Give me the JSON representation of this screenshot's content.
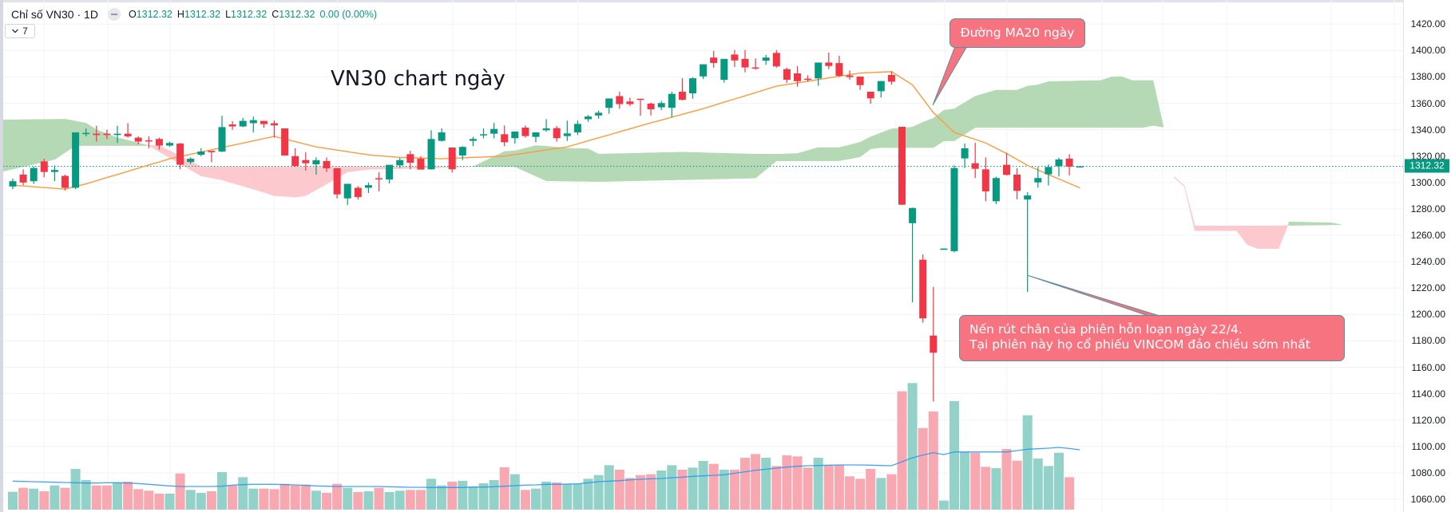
{
  "legend": {
    "symbol": "Chỉ số VN30 · 1D",
    "open_label": "O",
    "open": "1312.32",
    "high_label": "H",
    "high": "1312.32",
    "low_label": "L",
    "low": "1312.32",
    "close_label": "C",
    "close": "1312.32",
    "change": "0.00 (0.00%)",
    "indicator_count": "7"
  },
  "annotations": {
    "title_text": "VN30 chart ngày",
    "ma_callout": "Đường MA20 ngày",
    "candle_callout_line1": "Nến rút chân của phiên hỗn loạn ngày 22/4.",
    "candle_callout_line2": "Tại phiên này họ cổ phiếu VINCOM đảo chiều sớm nhất"
  },
  "price_axis": {
    "ticks": [
      "1420.00",
      "1400.00",
      "1380.00",
      "1360.00",
      "1340.00",
      "1320.00",
      "1300.00",
      "1280.00",
      "1260.00",
      "1240.00",
      "1220.00",
      "1200.00",
      "1180.00",
      "1160.00",
      "1140.00",
      "1120.00",
      "1100.00",
      "1080.00",
      "1060.00"
    ],
    "last_price": "1312.32"
  },
  "colors": {
    "up": "#089981",
    "down": "#f23645",
    "volume_up": "#92d2c8",
    "volume_down": "#f8a8b0",
    "cloud_up": "#b5d9b5",
    "cloud_down": "#fcc9cf",
    "ma20": "#ff9a3c",
    "volume_ma": "#2196f3",
    "callout": "#f7737f"
  },
  "chart_data": {
    "type": "candlestick",
    "title": "",
    "ylim": [
      1060,
      1420
    ],
    "grid": true,
    "last_price": 1312.32,
    "candles_ohlc": [
      [
        1297,
        1303,
        1295,
        1301
      ],
      [
        1306,
        1310,
        1298,
        1300
      ],
      [
        1301,
        1312,
        1299,
        1311
      ],
      [
        1316,
        1318,
        1304,
        1308
      ],
      [
        1308,
        1313,
        1301,
        1309.5
      ],
      [
        1305,
        1306,
        1294,
        1296
      ],
      [
        1296,
        1338,
        1295,
        1338
      ],
      [
        1337,
        1341,
        1335,
        1337.6
      ],
      [
        1337,
        1343,
        1331,
        1336
      ],
      [
        1337,
        1340,
        1333,
        1336
      ],
      [
        1336,
        1343,
        1330,
        1337
      ],
      [
        1337,
        1345,
        1334,
        1335
      ],
      [
        1334,
        1335,
        1329,
        1331
      ],
      [
        1332,
        1335,
        1326,
        1331.5
      ],
      [
        1333,
        1334,
        1325,
        1328
      ],
      [
        1328,
        1331,
        1327,
        1330
      ],
      [
        1329.5,
        1330,
        1310,
        1313.5
      ],
      [
        1315.5,
        1319,
        1314,
        1318
      ],
      [
        1321,
        1326,
        1320,
        1323.5
      ],
      [
        1324,
        1324,
        1315.5,
        1323
      ],
      [
        1323.5,
        1350.6,
        1323,
        1342
      ],
      [
        1344,
        1346.5,
        1340,
        1342.5
      ],
      [
        1342.5,
        1349,
        1342,
        1346.7
      ],
      [
        1345,
        1350,
        1338,
        1347.3
      ],
      [
        1346.7,
        1346.7,
        1341.5,
        1344.3
      ],
      [
        1344.9,
        1347,
        1334,
        1343.3
      ],
      [
        1341,
        1341,
        1320.5,
        1320.5
      ],
      [
        1320,
        1326,
        1312,
        1312.5
      ],
      [
        1317,
        1323,
        1309,
        1314.6
      ],
      [
        1313.8,
        1319,
        1306,
        1316.9
      ],
      [
        1316.3,
        1319,
        1308,
        1310.8
      ],
      [
        1310.8,
        1311,
        1288,
        1291
      ],
      [
        1288,
        1299,
        1283,
        1299
      ],
      [
        1296,
        1297.3,
        1287,
        1289
      ],
      [
        1296,
        1300,
        1292,
        1298
      ],
      [
        1303.3,
        1307.8,
        1293.3,
        1303
      ],
      [
        1302.3,
        1313.4,
        1299.3,
        1313.4
      ],
      [
        1313,
        1318.7,
        1311,
        1317
      ],
      [
        1321.5,
        1324,
        1310,
        1315
      ],
      [
        1318,
        1319.8,
        1310,
        1309.8
      ],
      [
        1310,
        1339.6,
        1309.8,
        1333
      ],
      [
        1331.6,
        1341,
        1331,
        1338
      ],
      [
        1326.5,
        1326.5,
        1307.5,
        1310
      ],
      [
        1320.5,
        1327.5,
        1317,
        1327
      ],
      [
        1331.6,
        1334.6,
        1327.5,
        1333
      ],
      [
        1336.5,
        1341,
        1333.5,
        1336.6
      ],
      [
        1337,
        1345.2,
        1333.5,
        1340.6
      ],
      [
        1336.6,
        1343.2,
        1327.5,
        1330.5
      ],
      [
        1333.6,
        1338.6,
        1329.5,
        1338.6
      ],
      [
        1341.6,
        1343.2,
        1334,
        1335.2
      ],
      [
        1334.6,
        1338,
        1330.5,
        1338
      ],
      [
        1339.6,
        1348,
        1338.5,
        1341
      ],
      [
        1341.2,
        1342.8,
        1331,
        1333.6
      ],
      [
        1335.2,
        1346.9,
        1331.5,
        1337.2
      ],
      [
        1338,
        1346.9,
        1336,
        1344.4
      ],
      [
        1348,
        1351.3,
        1346,
        1350
      ],
      [
        1350.8,
        1354.5,
        1348.4,
        1352.9
      ],
      [
        1356.6,
        1363.7,
        1352.1,
        1363.7
      ],
      [
        1365.5,
        1368.8,
        1355.9,
        1359.4
      ],
      [
        1361.4,
        1364.3,
        1358,
        1359.4
      ],
      [
        1363.5,
        1363.5,
        1350.6,
        1363.4
      ],
      [
        1359.8,
        1360.6,
        1350.8,
        1355.5
      ],
      [
        1357,
        1361.8,
        1354.9,
        1360.2
      ],
      [
        1356.6,
        1368.8,
        1349.4,
        1367.2
      ],
      [
        1368.8,
        1379,
        1362.3,
        1362.7
      ],
      [
        1367.6,
        1379.8,
        1363.5,
        1379
      ],
      [
        1380.4,
        1389.6,
        1378.4,
        1389.6
      ],
      [
        1394.7,
        1399.8,
        1387,
        1390.6
      ],
      [
        1377.8,
        1393.7,
        1375.7,
        1393.7
      ],
      [
        1397,
        1400.4,
        1387.6,
        1392.5
      ],
      [
        1393.7,
        1400.4,
        1383.5,
        1387.2
      ],
      [
        1387.2,
        1394.1,
        1385.5,
        1386.8
      ],
      [
        1392.3,
        1396.7,
        1389.2,
        1394.7
      ],
      [
        1398.2,
        1400.4,
        1387,
        1388
      ],
      [
        1385.9,
        1387,
        1375.6,
        1377.9
      ],
      [
        1382.7,
        1388.2,
        1372.6,
        1376.8
      ],
      [
        1378.7,
        1381.3,
        1376.2,
        1378.2
      ],
      [
        1378.9,
        1390.9,
        1373.3,
        1390.9
      ],
      [
        1390.9,
        1398.4,
        1385.9,
        1388.3
      ],
      [
        1390.5,
        1396,
        1380,
        1380.9
      ],
      [
        1381.1,
        1384.9,
        1377.9,
        1379.9
      ],
      [
        1380.3,
        1380.3,
        1370.2,
        1373.8
      ],
      [
        1368.8,
        1368.8,
        1359.7,
        1363.8
      ],
      [
        1369.2,
        1376.9,
        1364.4,
        1376.9
      ],
      [
        1381.5,
        1384.3,
        1374.2,
        1376.4
      ],
      [
        1342.2,
        1342.2,
        1283,
        1283.2
      ],
      [
        1269.2,
        1281,
        1209.3,
        1280.7
      ],
      [
        1241.5,
        1245.5,
        1193.8,
        1197.1
      ],
      [
        1184,
        1221,
        1134,
        1171
      ],
      [
        1249,
        1250,
        1249,
        1250
      ],
      [
        1248,
        1313,
        1247,
        1311
      ],
      [
        1318.3,
        1329.6,
        1311,
        1325.9
      ],
      [
        1314.6,
        1330,
        1303.4,
        1310.4
      ],
      [
        1310,
        1319,
        1285.8,
        1293.3
      ],
      [
        1285.8,
        1304.4,
        1283.6,
        1303.4
      ],
      [
        1313.4,
        1322.5,
        1305.4,
        1305.8
      ],
      [
        1306,
        1310.8,
        1287.3,
        1293.7
      ],
      [
        1287.1,
        1292.7,
        1217,
        1290.2
      ],
      [
        1300.1,
        1311.8,
        1296.1,
        1303.4
      ],
      [
        1306.2,
        1313.8,
        1297.7,
        1311.8
      ],
      [
        1312.4,
        1318.7,
        1304.6,
        1317.5
      ],
      [
        1318.1,
        1321.5,
        1305.4,
        1312
      ],
      [
        1312.32,
        1312.32,
        1312.32,
        1312.32
      ]
    ],
    "ma20": [
      1298,
      1297.4,
      1296.8,
      1296.2,
      1295.6,
      1295,
      1297,
      1299,
      1301.4,
      1303.8,
      1306.1,
      1308.5,
      1310.9,
      1313.3,
      1315.6,
      1318,
      1319.7,
      1321.4,
      1323.1,
      1324.8,
      1326.5,
      1328.2,
      1329.9,
      1331.6,
      1333.3,
      1335,
      1333,
      1331,
      1329,
      1327,
      1325.8,
      1324.6,
      1323.4,
      1322.2,
      1321,
      1320.3,
      1319.7,
      1319,
      1318.8,
      1318.5,
      1318.3,
      1318,
      1318.3,
      1318.7,
      1319,
      1319.3,
      1319.7,
      1320,
      1321.2,
      1322.3,
      1323.5,
      1324.7,
      1325.8,
      1327,
      1329.3,
      1331.6,
      1333.9,
      1336.1,
      1338.4,
      1340.7,
      1343,
      1345.2,
      1347.3,
      1349.5,
      1351.7,
      1353.8,
      1356,
      1358.4,
      1360.9,
      1363.3,
      1365.7,
      1368.1,
      1370.6,
      1373,
      1374.3,
      1375.5,
      1376.8,
      1378,
      1379.3,
      1380.5,
      1381.8,
      1383,
      1383.3,
      1383.7,
      1384,
      1379,
      1374,
      1363.5,
      1353,
      1345.5,
      1338,
      1335.3,
      1332.7,
      1330,
      1326,
      1322,
      1317.5,
      1313,
      1309.5,
      1306,
      1302.7,
      1299.3,
      1296
    ],
    "volume_relative": [
      67,
      82,
      79,
      69,
      91,
      82,
      153,
      111,
      91,
      91,
      102,
      105,
      77,
      71,
      60,
      60,
      136,
      74,
      63,
      69,
      141,
      91,
      122,
      79,
      79,
      77,
      97,
      91,
      94,
      71,
      63,
      97,
      82,
      66,
      69,
      82,
      66,
      71,
      74,
      74,
      116,
      91,
      105,
      108,
      88,
      99,
      111,
      159,
      133,
      74,
      79,
      105,
      102,
      97,
      97,
      116,
      130,
      167,
      150,
      119,
      130,
      133,
      147,
      167,
      150,
      158,
      183,
      172,
      150,
      150,
      195,
      209,
      195,
      164,
      204,
      200,
      158,
      195,
      167,
      167,
      125,
      116,
      153,
      119,
      133,
      445,
      476,
      307,
      369,
      34,
      408,
      217,
      214,
      161,
      156,
      228,
      184,
      355,
      192,
      164,
      214,
      122,
      0
    ],
    "volume_ma_relative": [
      107,
      106,
      105,
      104,
      103,
      102,
      101,
      100,
      100,
      101,
      101,
      100,
      98,
      95,
      92,
      89,
      87,
      87,
      87,
      87,
      88,
      92,
      94,
      95,
      95,
      95,
      94,
      93,
      91,
      89,
      88,
      87,
      87,
      87,
      87,
      87,
      86,
      85,
      84,
      84,
      83,
      83,
      83,
      83,
      84,
      85,
      86,
      88,
      90,
      92,
      93,
      95,
      95,
      96,
      97,
      101,
      105,
      107,
      109,
      112,
      114,
      116,
      117,
      120,
      122,
      125,
      127,
      129,
      131,
      137,
      142,
      148,
      152,
      156,
      160,
      163,
      165,
      166,
      167,
      168,
      168,
      168,
      167,
      166,
      165,
      180,
      195,
      205,
      214,
      207,
      217,
      217,
      217,
      217,
      217,
      217,
      222,
      227,
      229,
      231,
      234,
      230,
      225
    ],
    "ichimoku_cloud": [
      {
        "span_a": [
          [
            0,
            1347.5
          ],
          [
            4,
            1347.8
          ],
          [
            6,
            1348
          ],
          [
            8,
            1345
          ],
          [
            9,
            1340
          ],
          [
            11,
            1334
          ],
          [
            12,
            1332
          ],
          [
            14,
            1328
          ],
          [
            19,
            1305
          ],
          [
            21,
            1302
          ],
          [
            24,
            1295
          ],
          [
            26,
            1290
          ],
          [
            28,
            1289
          ],
          [
            29,
            1290
          ],
          [
            31,
            1299
          ],
          [
            33,
            1308
          ],
          [
            35,
            1310
          ],
          [
            41,
            1311
          ],
          [
            45,
            1312
          ],
          [
            48,
            1323.5
          ],
          [
            49,
            1324
          ],
          [
            51,
            1328
          ],
          [
            52,
            1327.5
          ],
          [
            54,
            1326
          ],
          [
            56,
            1325.5
          ],
          [
            57,
            1321.5
          ],
          [
            65,
            1323
          ],
          [
            72,
            1321.5
          ],
          [
            74,
            1321.5
          ],
          [
            76,
            1322
          ],
          [
            78,
            1326.5
          ],
          [
            80,
            1326.5
          ],
          [
            82,
            1330.5
          ],
          [
            83,
            1334.6
          ],
          [
            85,
            1340.6
          ],
          [
            87,
            1342
          ],
          [
            88,
            1345.7
          ],
          [
            89,
            1348.7
          ],
          [
            90,
            1354.7
          ],
          [
            91,
            1355.8
          ],
          [
            93,
            1365.4
          ],
          [
            95,
            1370
          ],
          [
            97,
            1370
          ],
          [
            98,
            1373
          ],
          [
            99,
            1374
          ],
          [
            100,
            1376.5
          ],
          [
            105,
            1377.3
          ],
          [
            106,
            1380
          ],
          [
            107,
            1380.3
          ],
          [
            108,
            1377.3
          ],
          [
            110,
            1377.3
          ],
          [
            111,
            1342
          ]
        ],
        "span_b": [
          [
            0,
            1308.4
          ],
          [
            5,
            1317.5
          ],
          [
            7,
            1328
          ],
          [
            15,
            1328
          ],
          [
            17,
            1320
          ],
          [
            19,
            1312
          ],
          [
            49,
            1312
          ],
          [
            52,
            1301.3
          ],
          [
            57,
            1300.7
          ],
          [
            72,
            1303.4
          ],
          [
            74,
            1316.4
          ],
          [
            80,
            1316.5
          ],
          [
            82,
            1319.5
          ],
          [
            83,
            1325.5
          ],
          [
            84,
            1326.5
          ],
          [
            89,
            1326.5
          ],
          [
            90,
            1331.6
          ],
          [
            91,
            1331.6
          ],
          [
            93,
            1341.7
          ],
          [
            109,
            1341.7
          ],
          [
            110,
            1343.3
          ],
          [
            111,
            1342
          ]
        ]
      },
      {
        "span_a": [
          [
            112,
            1304
          ],
          [
            113,
            1297
          ],
          [
            114,
            1263.5
          ],
          [
            118,
            1263.5
          ],
          [
            119,
            1253
          ],
          [
            120,
            1250
          ],
          [
            122,
            1250
          ],
          [
            123,
            1270.1
          ],
          [
            127,
            1269.5
          ],
          [
            128,
            1268
          ]
        ],
        "span_b": [
          [
            112,
            1304.5
          ],
          [
            113,
            1297.5
          ],
          [
            114,
            1267.1
          ],
          [
            122,
            1267.1
          ],
          [
            123,
            1267.5
          ],
          [
            128,
            1268
          ]
        ]
      }
    ]
  }
}
